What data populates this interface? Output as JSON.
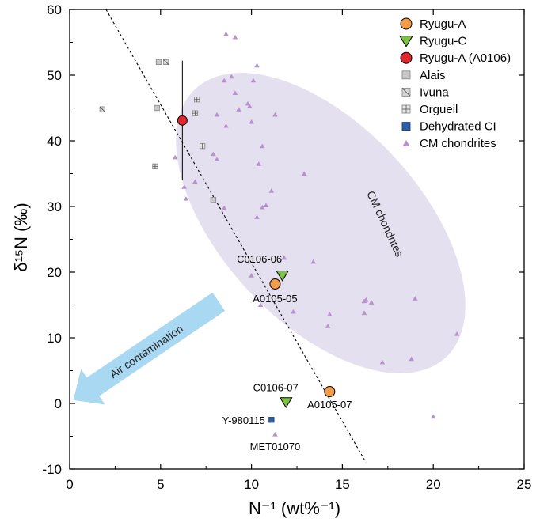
{
  "chart_data": {
    "type": "scatter",
    "xlabel": "N⁻¹ (wt%⁻¹)",
    "ylabel": "δ¹⁵N (‰)",
    "xlim": [
      0,
      25
    ],
    "ylim": [
      -10,
      60
    ],
    "xticks": [
      0,
      5,
      10,
      15,
      20,
      25
    ],
    "yticks": [
      -10,
      0,
      10,
      20,
      30,
      40,
      50,
      60
    ],
    "grid": false,
    "legend_position": "top-right",
    "series": [
      {
        "name": "Ryugu-A",
        "marker": "circle",
        "color": "#f39c4a",
        "points": [
          {
            "x": 11.3,
            "y": 18.2,
            "label": "A0105-05"
          },
          {
            "x": 14.3,
            "y": 1.8,
            "label": "A0105-07"
          }
        ]
      },
      {
        "name": "Ryugu-C",
        "marker": "triangle-down",
        "color": "#7dc242",
        "points": [
          {
            "x": 11.7,
            "y": 19.5,
            "label": "C0106-06"
          },
          {
            "x": 11.9,
            "y": 0.2,
            "label": "C0106-07"
          }
        ]
      },
      {
        "name": "Ryugu-A (A0106)",
        "marker": "circle",
        "color": "#e3262b",
        "points": [
          {
            "x": 6.2,
            "y": 43.1,
            "yerr": [
              34.0,
              52.2
            ]
          }
        ]
      },
      {
        "name": "Alais",
        "marker": "square",
        "color": "#c8c8c8",
        "points": [
          {
            "x": 4.9,
            "y": 52.0
          },
          {
            "x": 4.8,
            "y": 45.0
          },
          {
            "x": 7.9,
            "y": 31.0
          }
        ]
      },
      {
        "name": "Ivuna",
        "marker": "square-hatched",
        "color": "#d6d6d6",
        "points": [
          {
            "x": 5.3,
            "y": 52.0
          },
          {
            "x": 1.8,
            "y": 44.8
          }
        ]
      },
      {
        "name": "Orgueil",
        "marker": "square-cross",
        "color": "#e6e6e6",
        "points": [
          {
            "x": 7.0,
            "y": 46.3
          },
          {
            "x": 6.9,
            "y": 44.2
          },
          {
            "x": 7.3,
            "y": 39.2
          },
          {
            "x": 4.7,
            "y": 36.1
          }
        ]
      },
      {
        "name": "Dehydrated CI",
        "marker": "square",
        "color": "#2e5fa8",
        "points": [
          {
            "x": 11.1,
            "y": -2.5,
            "label": "Y-980115"
          }
        ]
      },
      {
        "name": "CM chondrites",
        "marker": "triangle-up",
        "color": "#b792cc",
        "points": [
          {
            "x": 8.6,
            "y": 56.3
          },
          {
            "x": 9.1,
            "y": 55.8
          },
          {
            "x": 10.3,
            "y": 51.5
          },
          {
            "x": 8.5,
            "y": 49.2
          },
          {
            "x": 8.9,
            "y": 49.8
          },
          {
            "x": 10.1,
            "y": 49.2
          },
          {
            "x": 9.1,
            "y": 47.3
          },
          {
            "x": 9.8,
            "y": 45.7
          },
          {
            "x": 9.9,
            "y": 45.3
          },
          {
            "x": 9.3,
            "y": 44.8
          },
          {
            "x": 8.1,
            "y": 44.0
          },
          {
            "x": 8.6,
            "y": 42.3
          },
          {
            "x": 10.0,
            "y": 42.9
          },
          {
            "x": 11.3,
            "y": 44.0
          },
          {
            "x": 10.6,
            "y": 39.2
          },
          {
            "x": 7.9,
            "y": 38.0
          },
          {
            "x": 5.8,
            "y": 37.5
          },
          {
            "x": 10.4,
            "y": 36.5
          },
          {
            "x": 8.1,
            "y": 37.2
          },
          {
            "x": 12.9,
            "y": 35.0
          },
          {
            "x": 6.9,
            "y": 33.8
          },
          {
            "x": 6.3,
            "y": 33.0
          },
          {
            "x": 11.1,
            "y": 32.4
          },
          {
            "x": 6.4,
            "y": 31.2
          },
          {
            "x": 10.6,
            "y": 29.9
          },
          {
            "x": 10.3,
            "y": 28.4
          },
          {
            "x": 8.5,
            "y": 29.8
          },
          {
            "x": 10.8,
            "y": 30.2
          },
          {
            "x": 11.8,
            "y": 22.2
          },
          {
            "x": 13.4,
            "y": 21.6
          },
          {
            "x": 10.0,
            "y": 19.5
          },
          {
            "x": 10.5,
            "y": 15.0
          },
          {
            "x": 12.3,
            "y": 14.0
          },
          {
            "x": 14.3,
            "y": 13.6
          },
          {
            "x": 14.2,
            "y": 11.8
          },
          {
            "x": 16.3,
            "y": 15.8
          },
          {
            "x": 16.6,
            "y": 15.4
          },
          {
            "x": 16.2,
            "y": 15.6
          },
          {
            "x": 16.2,
            "y": 13.8
          },
          {
            "x": 19.0,
            "y": 16.0
          },
          {
            "x": 18.8,
            "y": 6.8
          },
          {
            "x": 17.2,
            "y": 6.3
          },
          {
            "x": 21.3,
            "y": 10.6
          },
          {
            "x": 20.0,
            "y": -2.0
          },
          {
            "x": 11.3,
            "y": -4.7,
            "label": "MET01070"
          }
        ]
      }
    ],
    "trend_line": {
      "style": "dashed",
      "from": [
        2.0,
        60.0
      ],
      "to": [
        16.3,
        -9.0
      ]
    },
    "cm_region_label": "CM chondrites",
    "arrow": {
      "label": "Air contamination",
      "from": [
        8.2,
        15.5
      ],
      "to": [
        0.2,
        0.5
      ],
      "color": "#a9d8f2"
    }
  }
}
